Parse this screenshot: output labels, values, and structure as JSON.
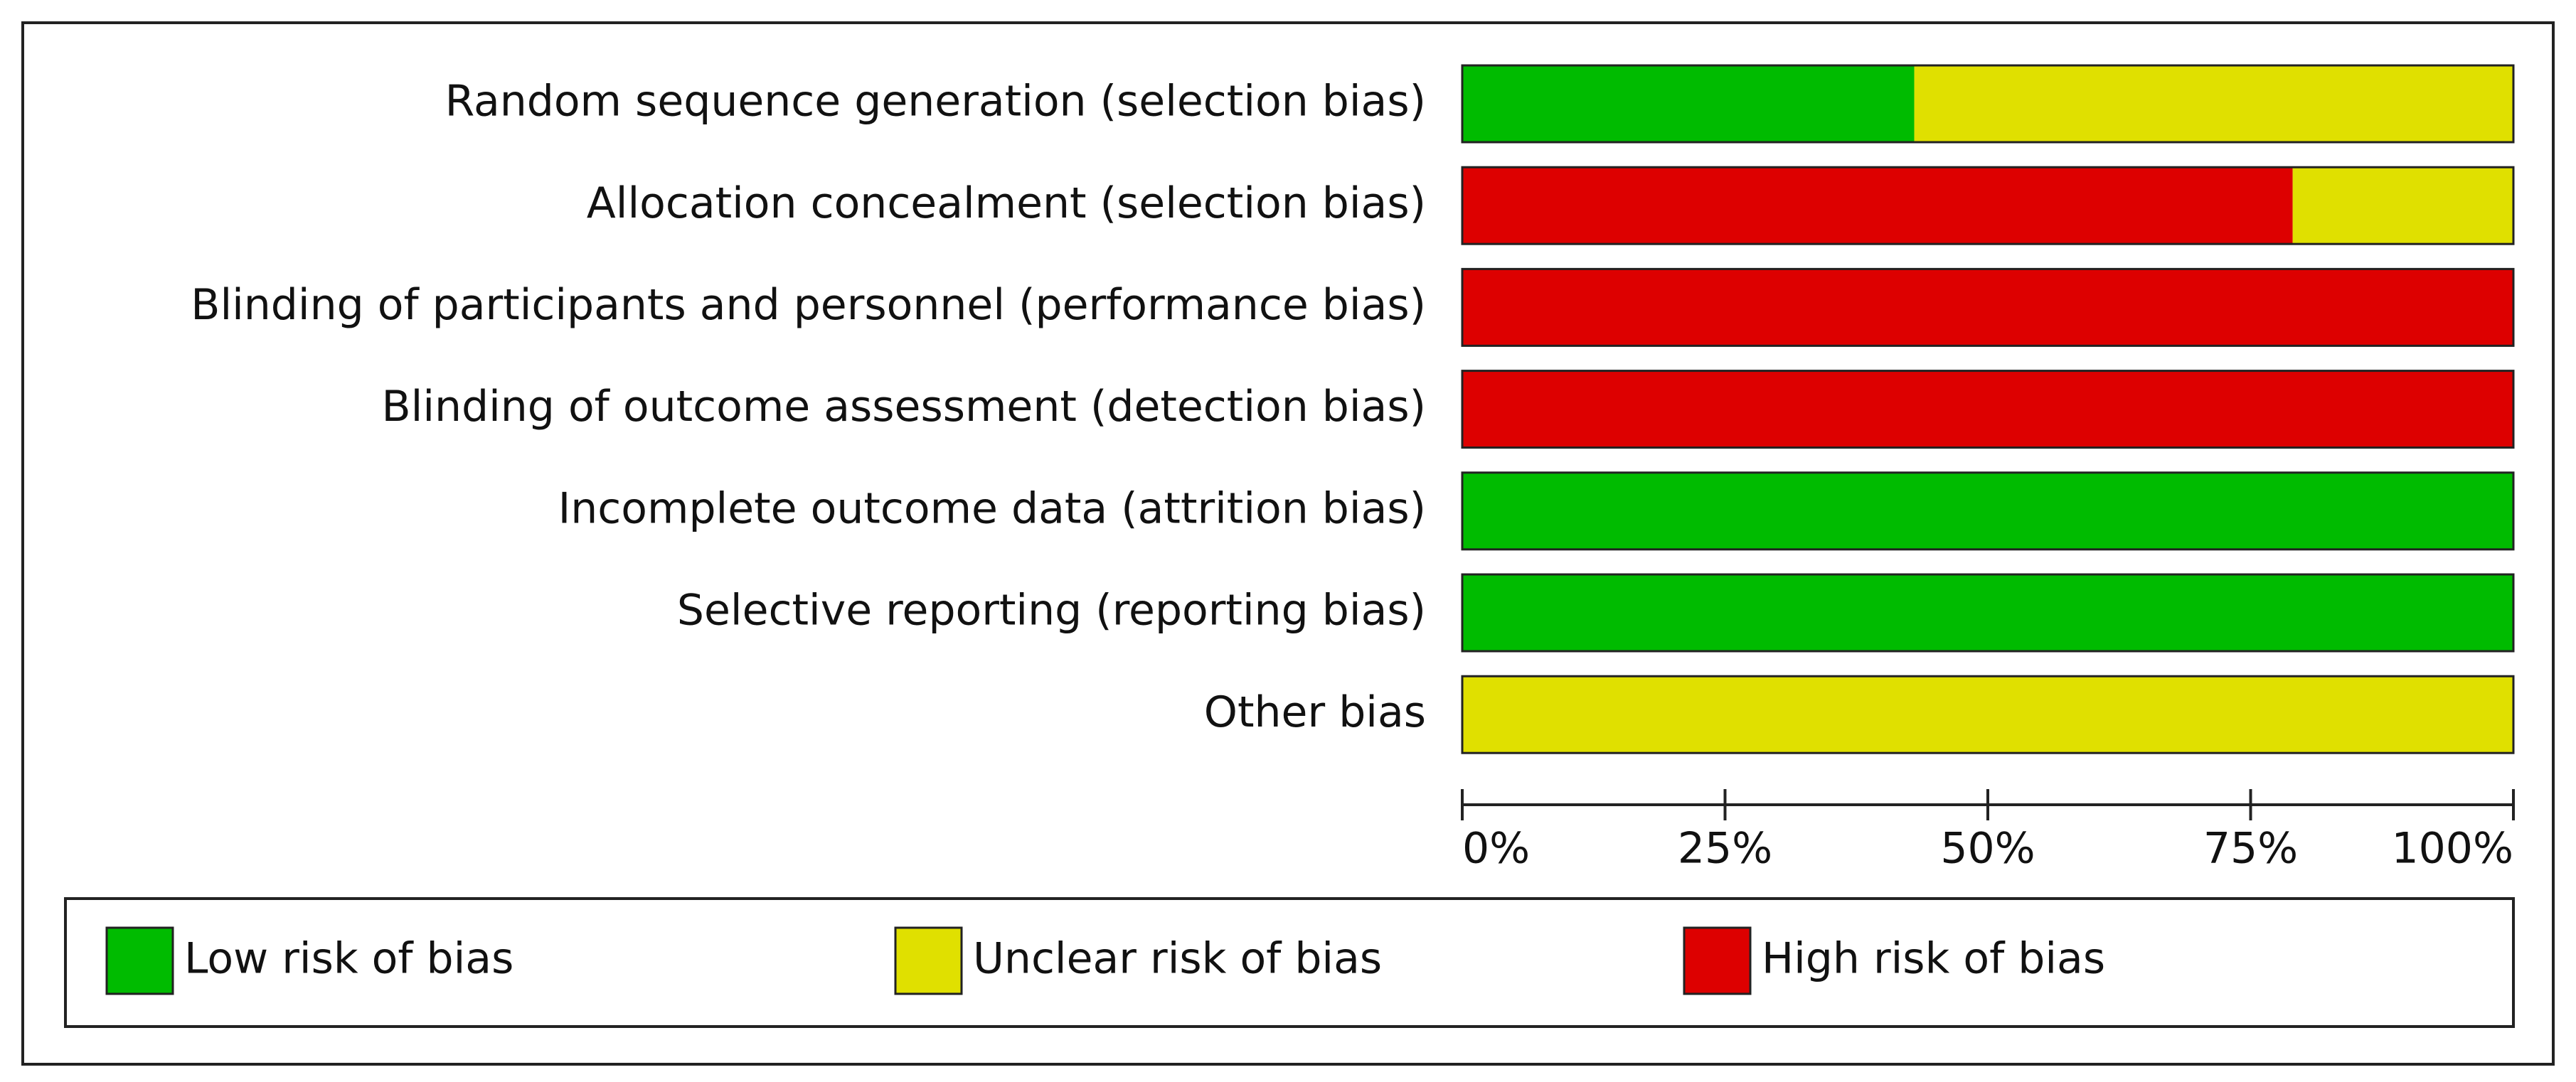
{
  "chart_data": {
    "type": "stacked-bar-horizontal",
    "categories": [
      "Random sequence generation (selection bias)",
      "Allocation concealment (selection bias)",
      "Blinding of participants and personnel (performance bias)",
      "Blinding of outcome assessment (detection bias)",
      "Incomplete outcome data (attrition bias)",
      "Selective reporting (reporting bias)",
      "Other bias"
    ],
    "series": [
      {
        "name": "Low risk of bias",
        "color": "#00bb00",
        "values": [
          43,
          0,
          0,
          0,
          100,
          100,
          0
        ]
      },
      {
        "name": "Unclear risk of bias",
        "color": "#e0e000",
        "values": [
          57,
          21,
          0,
          0,
          0,
          0,
          100
        ]
      },
      {
        "name": "High risk of bias",
        "color": "#dd0000",
        "values": [
          0,
          79,
          100,
          100,
          0,
          0,
          0
        ]
      }
    ],
    "xlim": [
      0,
      100
    ],
    "xticks": [
      {
        "value": 0,
        "label": "0%"
      },
      {
        "value": 25,
        "label": "25%"
      },
      {
        "value": 50,
        "label": "50%"
      },
      {
        "value": 75,
        "label": "75%"
      },
      {
        "value": 100,
        "label": "100%"
      }
    ]
  }
}
